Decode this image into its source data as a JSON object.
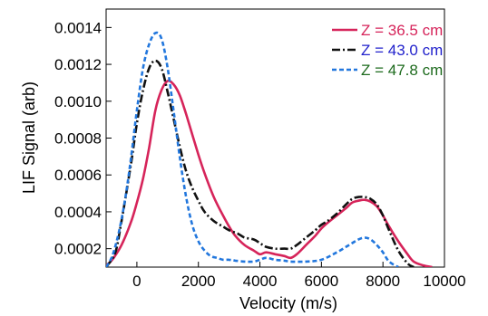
{
  "chart_data": {
    "type": "line",
    "title": "",
    "xlabel": "Velocity (m/s)",
    "ylabel": "LIF Signal (arb)",
    "xlim": [
      -1000,
      10000
    ],
    "ylim": [
      0.0001,
      0.0015
    ],
    "x_ticks": [
      0,
      2000,
      4000,
      6000,
      8000,
      10000
    ],
    "x_tick_labels": [
      "0",
      "2000",
      "4000",
      "6000",
      "8000",
      "10000"
    ],
    "y_ticks": [
      0.0002,
      0.0004,
      0.0006,
      0.0008,
      0.001,
      0.0012,
      0.0014
    ],
    "y_tick_labels": [
      "0.0002",
      "0.0004",
      "0.0006",
      "0.0008",
      "0.0010",
      "0.0012",
      "0.0014"
    ],
    "grid": false,
    "legend_position": "top-right",
    "series": [
      {
        "name": "Z = 36.5 cm",
        "color": "#d6245a",
        "label_color": "#d6245a",
        "dash": "solid",
        "x": [
          -1000,
          -800,
          -500,
          -200,
          0,
          200,
          400,
          600,
          800,
          1000,
          1200,
          1400,
          1600,
          1800,
          2000,
          2200,
          2500,
          2800,
          3000,
          3200,
          3500,
          3800,
          4000,
          4200,
          4500,
          4800,
          5000,
          5200,
          5500,
          5800,
          6000,
          6200,
          6500,
          6800,
          7000,
          7200,
          7400,
          7600,
          7800,
          8000,
          8200,
          8500,
          8800,
          9000,
          9300,
          9600
        ],
        "y": [
          0.00011,
          0.00014,
          0.00022,
          0.00034,
          0.00045,
          0.00058,
          0.00075,
          0.00095,
          0.00106,
          0.00111,
          0.00109,
          0.00103,
          0.00093,
          0.00082,
          0.00071,
          0.00061,
          0.00048,
          0.00038,
          0.00032,
          0.00027,
          0.00022,
          0.00019,
          0.00017,
          0.00018,
          0.00017,
          0.00016,
          0.00015,
          0.00017,
          0.00022,
          0.00027,
          0.00031,
          0.00034,
          0.00038,
          0.00042,
          0.00045,
          0.00046,
          0.000465,
          0.000455,
          0.00043,
          0.00038,
          0.00032,
          0.00024,
          0.00017,
          0.00013,
          0.00011,
          0.0001
        ]
      },
      {
        "name": "Z = 43.0 cm",
        "color": "#111111",
        "label_color": "#2222cc",
        "dash": "dashdot",
        "x": [
          -1000,
          -700,
          -500,
          -200,
          0,
          200,
          400,
          600,
          800,
          1000,
          1200,
          1400,
          1600,
          1800,
          2000,
          2200,
          2500,
          2800,
          3000,
          3300,
          3500,
          3800,
          4000,
          4200,
          4500,
          4800,
          5000,
          5200,
          5500,
          5800,
          6000,
          6200,
          6500,
          6800,
          7000,
          7200,
          7400,
          7600,
          7800,
          8000,
          8200,
          8500,
          8800,
          9000
        ],
        "y": [
          0.0001,
          0.00018,
          0.00035,
          0.00065,
          0.00088,
          0.00106,
          0.00118,
          0.00122,
          0.00118,
          0.00105,
          0.0009,
          0.00075,
          0.00062,
          0.00053,
          0.00046,
          0.0004,
          0.00035,
          0.00032,
          0.0003,
          0.00028,
          0.00026,
          0.00025,
          0.00023,
          0.00021,
          0.0002,
          0.0002,
          0.0002,
          0.00022,
          0.00026,
          0.0003,
          0.00033,
          0.00035,
          0.00039,
          0.00044,
          0.00047,
          0.00048,
          0.00048,
          0.00047,
          0.00044,
          0.00038,
          0.0003,
          0.00019,
          0.00012,
          0.0001
        ]
      },
      {
        "name": "Z = 47.8 cm",
        "color": "#2277dd",
        "label_color": "#1e6b1e",
        "dash": "dashed",
        "x": [
          -1000,
          -800,
          -600,
          -400,
          -200,
          0,
          200,
          400,
          600,
          800,
          1000,
          1200,
          1400,
          1600,
          1800,
          2000,
          2200,
          2400,
          2600,
          2800,
          3000,
          3200,
          3500,
          3800,
          4000,
          4200,
          4500,
          4800,
          5000,
          5500,
          6000,
          6500,
          6800,
          7000,
          7200,
          7400,
          7600,
          7800,
          8000,
          8200,
          8500
        ],
        "y": [
          0.0001,
          0.00016,
          0.00028,
          0.00045,
          0.00068,
          0.00095,
          0.00118,
          0.00131,
          0.00137,
          0.00134,
          0.00118,
          0.00094,
          0.00069,
          0.00048,
          0.00033,
          0.00024,
          0.00019,
          0.00016,
          0.00015,
          0.00014,
          0.00014,
          0.000135,
          0.00013,
          0.00013,
          0.00014,
          0.00015,
          0.00014,
          0.000135,
          0.00013,
          0.00013,
          0.00014,
          0.00018,
          0.00021,
          0.00023,
          0.00025,
          0.00026,
          0.00025,
          0.00022,
          0.00018,
          0.00013,
          0.0001
        ]
      }
    ]
  }
}
